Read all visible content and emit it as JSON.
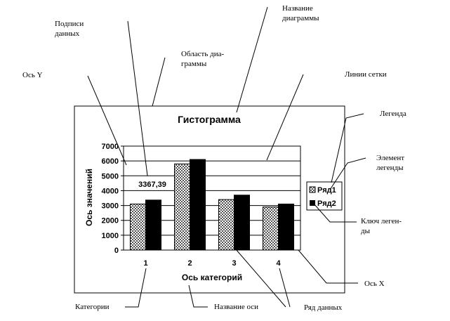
{
  "callouts": {
    "data_labels": [
      "Подписи",
      "данных"
    ],
    "plot_area": [
      "Область диа-",
      "граммы"
    ],
    "chart_title": [
      "Название",
      "диаграммы"
    ],
    "y_axis": "Ось Y",
    "gridlines": "Линии сетки",
    "legend": "Легенда",
    "legend_element": [
      "Элемент",
      "легенды"
    ],
    "legend_key": [
      "Ключ леген-",
      "ды"
    ],
    "x_axis": "Ось X",
    "categories": "Категории",
    "axis_title": "Название оси",
    "data_series": "Ряд данных"
  },
  "colors": {
    "series1": "#cfcfcf",
    "series2": "#000000",
    "plot_bg": "#ffffff",
    "line": "#000000"
  },
  "chart_data": {
    "type": "bar",
    "title": "Гистограмма",
    "xlabel": "Ось категорий",
    "ylabel": "Ось значений",
    "categories": [
      "1",
      "2",
      "3",
      "4"
    ],
    "ylim": [
      0,
      7000
    ],
    "yticks": [
      "0",
      "1000",
      "2000",
      "3000",
      "4000",
      "5000",
      "6000",
      "7000"
    ],
    "grid": true,
    "legend": "right",
    "series": [
      {
        "name": "Ряд1",
        "values": [
          3100,
          5800,
          3400,
          2900
        ],
        "pattern": "checker"
      },
      {
        "name": "Ряд2",
        "values": [
          3367.39,
          6100,
          3700,
          3100
        ],
        "pattern": "solid"
      }
    ],
    "data_label": "3367,39"
  }
}
